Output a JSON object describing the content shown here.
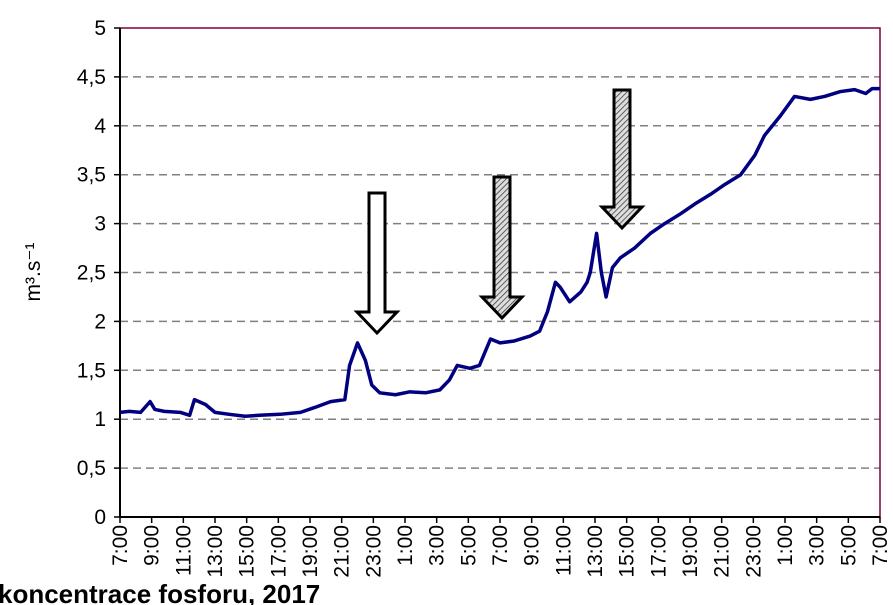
{
  "chart_data": {
    "type": "line",
    "ylabel": "m³.s⁻¹",
    "note": "koncentrace fosforu, 2017",
    "x": [
      0,
      0.6,
      1.3,
      1.9,
      2.2,
      2.8,
      3.8,
      4.4,
      4.7,
      5.4,
      6.0,
      6.9,
      7.9,
      8.8,
      10.1,
      11.4,
      12.3,
      13.3,
      14.2,
      14.5,
      15.0,
      15.5,
      15.9,
      16.4,
      17.4,
      18.3,
      19.3,
      20.2,
      20.8,
      21.3,
      22.1,
      22.7,
      23.4,
      24.0,
      24.9,
      25.9,
      26.5,
      27.0,
      27.5,
      27.8,
      28.4,
      29.1,
      29.5,
      29.7,
      30.1,
      30.4,
      30.7,
      31.1,
      31.6,
      32.5,
      33.5,
      34.4,
      35.4,
      36.3,
      37.3,
      38.2,
      39.2,
      40.1,
      40.7,
      41.7,
      42.6,
      43.6,
      44.5,
      45.5,
      46.4,
      47.1,
      47.5,
      48.0
    ],
    "series": [
      {
        "color": "#000080",
        "values": [
          1.07,
          1.08,
          1.07,
          1.18,
          1.1,
          1.08,
          1.07,
          1.04,
          1.2,
          1.15,
          1.07,
          1.05,
          1.03,
          1.04,
          1.05,
          1.07,
          1.12,
          1.18,
          1.2,
          1.55,
          1.78,
          1.6,
          1.35,
          1.27,
          1.25,
          1.28,
          1.27,
          1.3,
          1.4,
          1.55,
          1.52,
          1.55,
          1.82,
          1.78,
          1.8,
          1.85,
          1.9,
          2.1,
          2.4,
          2.35,
          2.2,
          2.3,
          2.4,
          2.5,
          2.9,
          2.5,
          2.25,
          2.55,
          2.65,
          2.75,
          2.9,
          3.0,
          3.1,
          3.2,
          3.3,
          3.4,
          3.5,
          3.7,
          3.9,
          4.1,
          4.3,
          4.27,
          4.3,
          4.35,
          4.37,
          4.33,
          4.38,
          4.38
        ]
      }
    ],
    "xlim": [
      0,
      48
    ],
    "xticks": [
      {
        "value": 0,
        "label": "7:00"
      },
      {
        "value": 2,
        "label": "9:00"
      },
      {
        "value": 4,
        "label": "11:00"
      },
      {
        "value": 6,
        "label": "13:00"
      },
      {
        "value": 8,
        "label": "15:00"
      },
      {
        "value": 10,
        "label": "17:00"
      },
      {
        "value": 12,
        "label": "19:00"
      },
      {
        "value": 14,
        "label": "21:00"
      },
      {
        "value": 16,
        "label": "23:00"
      },
      {
        "value": 18,
        "label": "1:00"
      },
      {
        "value": 20,
        "label": "3:00"
      },
      {
        "value": 22,
        "label": "5:00"
      },
      {
        "value": 24,
        "label": "7:00"
      },
      {
        "value": 26,
        "label": "9:00"
      },
      {
        "value": 28,
        "label": "11:00"
      },
      {
        "value": 30,
        "label": "13:00"
      },
      {
        "value": 32,
        "label": "15:00"
      },
      {
        "value": 34,
        "label": "17:00"
      },
      {
        "value": 36,
        "label": "19:00"
      },
      {
        "value": 38,
        "label": "21:00"
      },
      {
        "value": 40,
        "label": "23:00"
      },
      {
        "value": 42,
        "label": "1:00"
      },
      {
        "value": 44,
        "label": "3:00"
      },
      {
        "value": 46,
        "label": "5:00"
      },
      {
        "value": 48,
        "label": "7:00"
      }
    ],
    "ylim": [
      0,
      5
    ],
    "yticks": [
      0,
      {
        "value": 0.5,
        "label": "0,5"
      },
      1,
      {
        "value": 1.5,
        "label": "1,5"
      },
      2,
      {
        "value": 2.5,
        "label": "2,5"
      },
      3,
      {
        "value": 3.5,
        "label": "3,5"
      },
      4,
      {
        "value": 4.5,
        "label": "4,5"
      },
      5
    ],
    "grid": true
  }
}
